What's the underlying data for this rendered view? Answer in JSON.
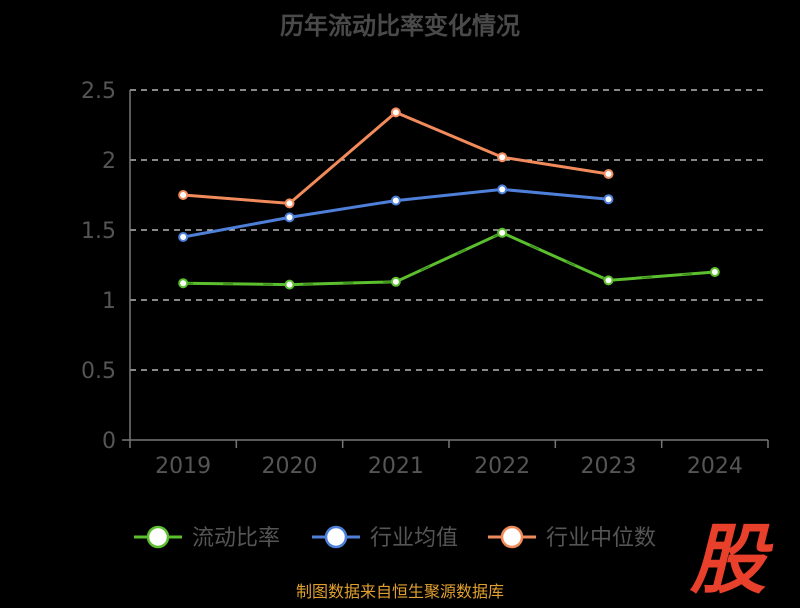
{
  "title": "历年流动比率变化情况",
  "source_note": "制图数据来自恒生聚源数据库",
  "watermark_text": "股",
  "colors": {
    "background": "#000000",
    "axis": "#777777",
    "grid": "#ffffff",
    "series": [
      "#5bbf2e",
      "#4e7fd9",
      "#f28b5c"
    ],
    "watermark": "#e8402a",
    "source": "#e0a030"
  },
  "chart_data": {
    "type": "line",
    "categories": [
      "2019",
      "2020",
      "2021",
      "2022",
      "2023",
      "2024"
    ],
    "yticks": [
      "0",
      "0.5",
      "1",
      "1.5",
      "2",
      "2.5"
    ],
    "ylim": [
      0,
      2.5
    ],
    "grid": true,
    "legend_position": "bottom",
    "series": [
      {
        "name": "流动比率",
        "values": [
          1.12,
          1.11,
          1.13,
          1.48,
          1.14,
          1.2
        ],
        "dashed_segments": true
      },
      {
        "name": "行业均值",
        "values": [
          1.45,
          1.59,
          1.71,
          1.79,
          1.72,
          null
        ]
      },
      {
        "name": "行业中位数",
        "values": [
          1.75,
          1.69,
          2.34,
          2.02,
          1.9,
          null
        ]
      }
    ]
  }
}
